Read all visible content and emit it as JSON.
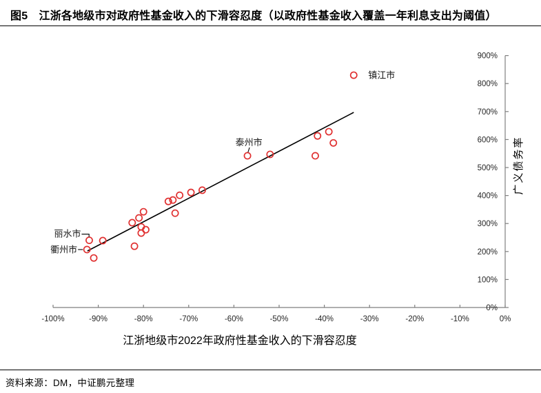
{
  "figure": {
    "title": "图5　江浙各地级市对政府性基金收入的下滑容忍度（以政府性基金收入覆盖一年利息支出为阈值）",
    "source": "资料来源：DM，中证鹏元整理"
  },
  "chart_data": {
    "type": "scatter",
    "title": "",
    "xlabel": "江浙地级市2022年政府性基金收入的下滑容忍度",
    "ylabel": "广义债务率",
    "xlim": [
      -100,
      0
    ],
    "ylim": [
      0,
      900
    ],
    "grid": false,
    "legend": false,
    "marker_color": "#E03030",
    "axis_color": "#7f7f7f",
    "text_color": "#262626",
    "trend_color": "#000000",
    "x_ticks": [
      {
        "v": -100,
        "label": "-100%"
      },
      {
        "v": -90,
        "label": "-90%"
      },
      {
        "v": -80,
        "label": "-80%"
      },
      {
        "v": -70,
        "label": "-70%"
      },
      {
        "v": -60,
        "label": "-60%"
      },
      {
        "v": -50,
        "label": "-50%"
      },
      {
        "v": -40,
        "label": "-40%"
      },
      {
        "v": -30,
        "label": "-30%"
      },
      {
        "v": -20,
        "label": "-20%"
      },
      {
        "v": -10,
        "label": "-10%"
      },
      {
        "v": 0,
        "label": "0%"
      }
    ],
    "y_ticks": [
      {
        "v": 0,
        "label": "0%"
      },
      {
        "v": 100,
        "label": "100%"
      },
      {
        "v": 200,
        "label": "200%"
      },
      {
        "v": 300,
        "label": "300%"
      },
      {
        "v": 400,
        "label": "400%"
      },
      {
        "v": 500,
        "label": "500%"
      },
      {
        "v": 600,
        "label": "600%"
      },
      {
        "v": 700,
        "label": "700%"
      },
      {
        "v": 800,
        "label": "800%"
      },
      {
        "v": 900,
        "label": "900%"
      }
    ],
    "points": [
      {
        "x": -92,
        "y": 240,
        "label": "丽水市"
      },
      {
        "x": -92.5,
        "y": 207,
        "label": "衢州市"
      },
      {
        "x": -91,
        "y": 177
      },
      {
        "x": -89,
        "y": 239
      },
      {
        "x": -82.5,
        "y": 303
      },
      {
        "x": -82,
        "y": 219
      },
      {
        "x": -81,
        "y": 320
      },
      {
        "x": -80.5,
        "y": 288
      },
      {
        "x": -80.5,
        "y": 266
      },
      {
        "x": -80,
        "y": 342
      },
      {
        "x": -79.5,
        "y": 278
      },
      {
        "x": -74.5,
        "y": 379
      },
      {
        "x": -73.5,
        "y": 384
      },
      {
        "x": -73,
        "y": 337
      },
      {
        "x": -72,
        "y": 401
      },
      {
        "x": -69.5,
        "y": 411
      },
      {
        "x": -67,
        "y": 419
      },
      {
        "x": -57,
        "y": 542,
        "label": "泰州市"
      },
      {
        "x": -52,
        "y": 547
      },
      {
        "x": -42,
        "y": 542
      },
      {
        "x": -41.5,
        "y": 613
      },
      {
        "x": -39,
        "y": 628
      },
      {
        "x": -38,
        "y": 588
      },
      {
        "x": -33.5,
        "y": 830,
        "label": "镇江市"
      }
    ],
    "trendline": {
      "x1": -92.4,
      "y1": 202,
      "x2": -33.5,
      "y2": 697
    },
    "annotations": [
      {
        "text": "镇江市",
        "x": -33.5,
        "y": 830,
        "placement": "right"
      },
      {
        "text": "泰州市",
        "x": -57,
        "y": 542,
        "placement": "above"
      },
      {
        "text": "丽水市",
        "x": -92,
        "y": 240,
        "placement": "left-elbow"
      },
      {
        "text": "衢州市",
        "x": -92.5,
        "y": 207,
        "placement": "left-dash"
      }
    ]
  }
}
